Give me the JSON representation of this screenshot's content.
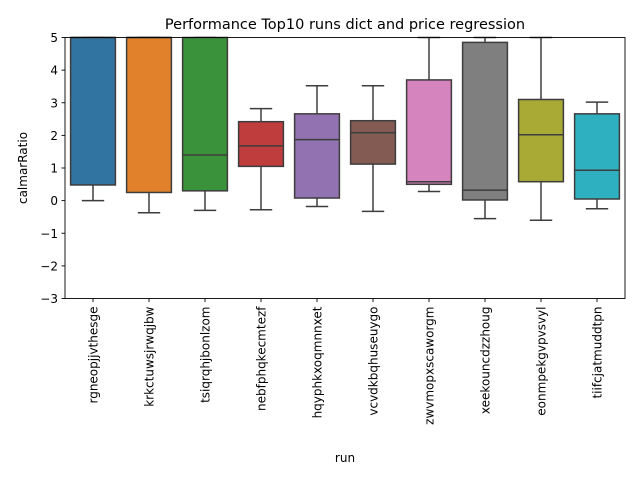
{
  "chart_data": {
    "type": "box",
    "title": "Performance Top10 runs dict and price regression",
    "xlabel": "run",
    "ylabel": "calmarRatio",
    "ylim": [
      -3,
      5
    ],
    "yticks": [
      -3,
      -2,
      -1,
      0,
      1,
      2,
      3,
      4,
      5
    ],
    "ytick_labels": [
      "−3",
      "−2",
      "−1",
      "0",
      "1",
      "2",
      "3",
      "4",
      "5"
    ],
    "grid": false,
    "categories": [
      "rgneopjjvthesge",
      "krkctuwsjrwqjbw",
      "tsiqrqhjbonlzom",
      "nebfphqkecmtezf",
      "hqyphkxoqmnnxet",
      "vcvdkbqhuseuygo",
      "zwvmopxscaworgm",
      "xeekouncdzzhoug",
      "eonmpekgvpvsvyl",
      "tiifcjatmuddtpn"
    ],
    "colors": [
      "#3274a1",
      "#e1812c",
      "#3a923a",
      "#c03d3e",
      "#9372b2",
      "#845b53",
      "#d684bd",
      "#7f7f7f",
      "#a9aa35",
      "#2eb0c0"
    ],
    "boxes": [
      {
        "whislo": 0.0,
        "q1": 0.48,
        "med": 5.0,
        "q3": 5.0,
        "whishi": 5.0
      },
      {
        "whislo": -0.37,
        "q1": 0.25,
        "med": 5.0,
        "q3": 5.0,
        "whishi": 5.0
      },
      {
        "whislo": -0.3,
        "q1": 0.3,
        "med": 1.4,
        "q3": 5.0,
        "whishi": 5.0
      },
      {
        "whislo": -0.28,
        "q1": 1.05,
        "med": 1.68,
        "q3": 2.42,
        "whishi": 2.82
      },
      {
        "whislo": -0.18,
        "q1": 0.08,
        "med": 1.87,
        "q3": 2.66,
        "whishi": 3.52
      },
      {
        "whislo": -0.33,
        "q1": 1.12,
        "med": 2.08,
        "q3": 2.45,
        "whishi": 3.52
      },
      {
        "whislo": 0.28,
        "q1": 0.5,
        "med": 0.58,
        "q3": 3.7,
        "whishi": 5.0
      },
      {
        "whislo": -0.55,
        "q1": 0.02,
        "med": 0.32,
        "q3": 4.85,
        "whishi": 5.0
      },
      {
        "whislo": -0.6,
        "q1": 0.58,
        "med": 2.02,
        "q3": 3.1,
        "whishi": 5.0
      },
      {
        "whislo": -0.25,
        "q1": 0.05,
        "med": 0.93,
        "q3": 2.66,
        "whishi": 3.02
      }
    ]
  }
}
